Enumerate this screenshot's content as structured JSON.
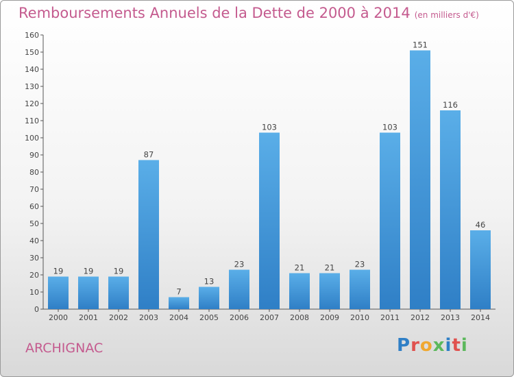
{
  "chart_data": {
    "type": "bar",
    "title": "Remboursements Annuels de la Dette de 2000 à 2014",
    "unit_note": "(en milliers d'€)",
    "categories": [
      "2000",
      "2001",
      "2002",
      "2003",
      "2004",
      "2005",
      "2006",
      "2007",
      "2008",
      "2009",
      "2010",
      "2011",
      "2012",
      "2013",
      "2014"
    ],
    "values": [
      19,
      19,
      19,
      87,
      7,
      13,
      23,
      103,
      21,
      21,
      23,
      103,
      151,
      116,
      46
    ],
    "ylim": [
      0,
      160
    ],
    "yticks": [
      0,
      10,
      20,
      30,
      40,
      50,
      60,
      70,
      80,
      90,
      100,
      110,
      120,
      130,
      140,
      150,
      160
    ],
    "grid": false,
    "colors": {
      "bar_light": "#5aaee8",
      "bar_dark": "#2f7fc6",
      "title": "#c45a8e"
    }
  },
  "footer": {
    "commune": "ARCHIGNAC",
    "brand": "Proxiti",
    "brand_colors": [
      "#2f7fc6",
      "#e0524f",
      "#f0a830",
      "#5cb85c",
      "#2f7fc6",
      "#e0524f",
      "#5cb85c"
    ]
  }
}
